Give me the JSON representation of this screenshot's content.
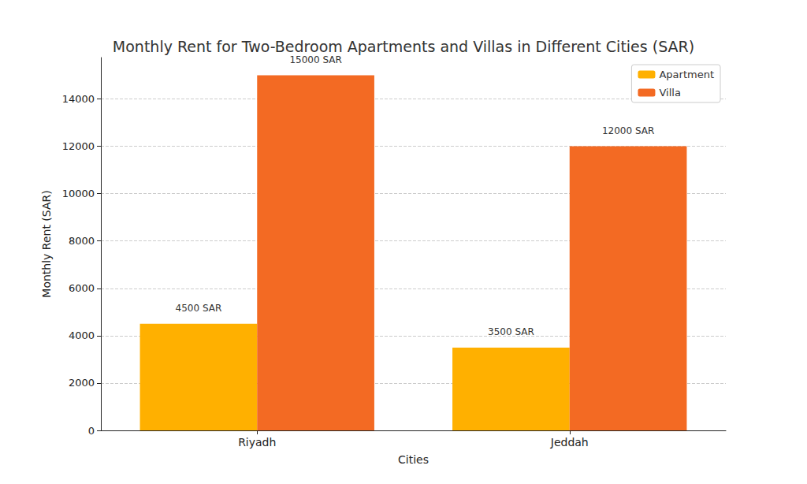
{
  "chart_data": {
    "type": "bar",
    "title": "Monthly Rent for Two-Bedroom Apartments and Villas in Different Cities (SAR)",
    "x_label": "Cities",
    "y_label": "Monthly Rent (SAR)",
    "categories": [
      "Riyadh",
      "Jeddah"
    ],
    "series": [
      {
        "name": "Apartment",
        "color": "#ffb000",
        "values": [
          4500,
          3500
        ],
        "value_labels": [
          "4500 SAR",
          "3500 SAR"
        ]
      },
      {
        "name": "Villa",
        "color": "#f36a23",
        "values": [
          15000,
          12000
        ],
        "value_labels": [
          "15000 SAR",
          "12000 SAR"
        ]
      }
    ],
    "ylim": [
      0,
      15750
    ],
    "yticks": [
      0,
      2000,
      4000,
      6000,
      8000,
      10000,
      12000,
      14000
    ],
    "grid": true,
    "legend": "upper right",
    "data_labels": true
  }
}
